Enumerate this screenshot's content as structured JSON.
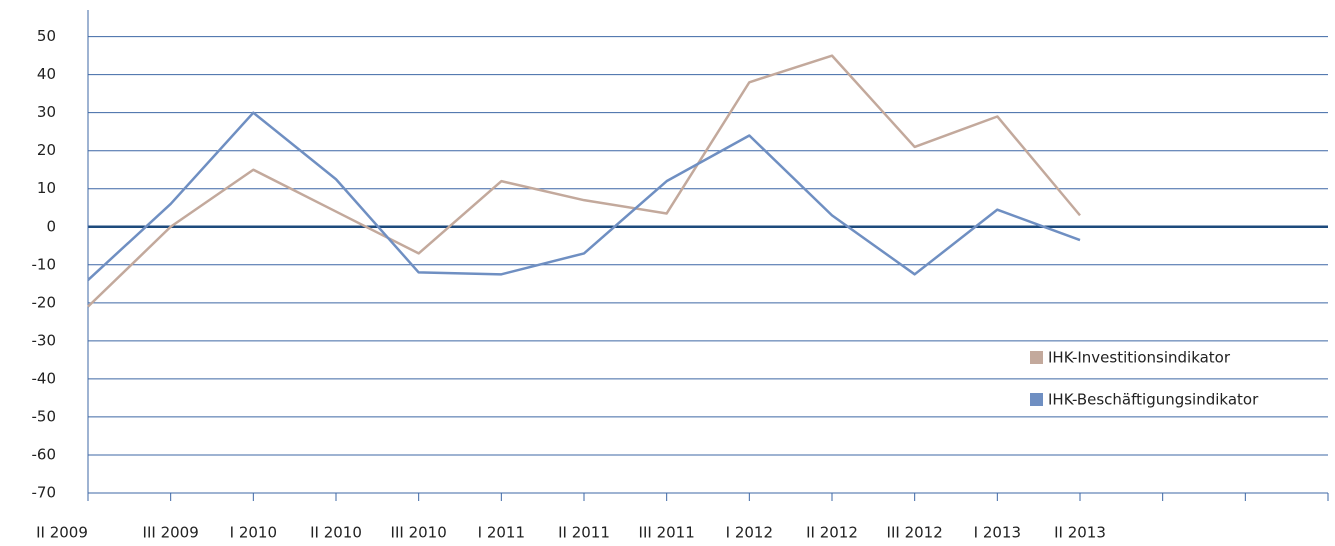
{
  "chart_data": {
    "type": "line",
    "categories": [
      "II 2009",
      "III 2009",
      "I 2010",
      "II 2010",
      "III 2010",
      "I 2011",
      "II 2011",
      "III 2011",
      "I 2012",
      "II 2012",
      "III 2012",
      "I 2013",
      "II 2013",
      null,
      null,
      null
    ],
    "series": [
      {
        "name": "IHK-Investitionsindikator",
        "color": "#c3a99c",
        "values": [
          -21,
          0,
          15,
          4,
          -7,
          12,
          7,
          3.5,
          38,
          45,
          21,
          29,
          3,
          null,
          null,
          null
        ]
      },
      {
        "name": "IHK-Beschäftigungsindikator",
        "color": "#6f8fc2",
        "values": [
          -14,
          6,
          30,
          12.5,
          -12,
          -12.5,
          -7,
          12,
          24,
          3,
          -12.5,
          4.5,
          -3.5,
          null,
          null,
          null
        ]
      }
    ],
    "ylim": [
      -70,
      57
    ],
    "yticks": [
      -70,
      -60,
      -50,
      -40,
      -30,
      -20,
      -10,
      0,
      10,
      20,
      30,
      40,
      50
    ],
    "grid": true,
    "legend": "lower-right"
  }
}
